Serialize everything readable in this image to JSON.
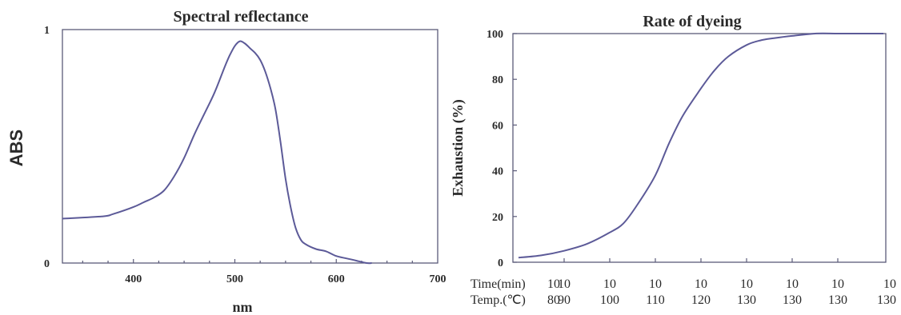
{
  "chart_data": [
    {
      "type": "line",
      "title": "Spectral reflectance",
      "xlabel": "nm",
      "ylabel": "ABS",
      "xlim": [
        330,
        700
      ],
      "ylim": [
        0,
        1
      ],
      "x_ticks": [
        "400",
        "500",
        "600",
        "700"
      ],
      "x_tick_values": [
        400,
        500,
        600,
        700
      ],
      "y_ticks": [
        "0",
        "1"
      ],
      "y_tick_values": [
        0,
        1
      ],
      "grid": false,
      "x": [
        330,
        370,
        380,
        400,
        410,
        420,
        430,
        440,
        450,
        460,
        470,
        480,
        490,
        495,
        500,
        505,
        510,
        515,
        520,
        525,
        530,
        535,
        540,
        545,
        550,
        555,
        560,
        565,
        570,
        580,
        590,
        600,
        610,
        620,
        630,
        635
      ],
      "values": [
        0.19,
        0.2,
        0.21,
        0.24,
        0.26,
        0.28,
        0.31,
        0.37,
        0.45,
        0.55,
        0.64,
        0.73,
        0.84,
        0.89,
        0.93,
        0.95,
        0.94,
        0.92,
        0.9,
        0.87,
        0.82,
        0.75,
        0.66,
        0.52,
        0.36,
        0.24,
        0.15,
        0.1,
        0.08,
        0.06,
        0.05,
        0.03,
        0.02,
        0.01,
        0.0,
        0.0
      ]
    },
    {
      "type": "line",
      "title": "Rate of dyeing",
      "xlabel": "",
      "ylabel": "Exhaustion (%)",
      "ylim": [
        0,
        100
      ],
      "y_ticks": [
        "0",
        "20",
        "40",
        "60",
        "80",
        "100"
      ],
      "y_tick_values": [
        0,
        20,
        40,
        60,
        80,
        100
      ],
      "grid": false,
      "row_labels": [
        "Time(min)",
        "Temp.(℃)"
      ],
      "time_ticks": [
        "10",
        "10",
        "10",
        "10",
        "10",
        "10",
        "10",
        "10",
        "10"
      ],
      "temp_ticks": [
        "80",
        "90",
        "100",
        "110",
        "120",
        "130",
        "130",
        "130",
        "130"
      ],
      "x": [
        0,
        0.5,
        1,
        1.5,
        2,
        2.3,
        2.6,
        3,
        3.3,
        3.6,
        4,
        4.3,
        4.6,
        5,
        5.3,
        5.6,
        6,
        6.5,
        7,
        7.5,
        8
      ],
      "values": [
        2,
        3,
        5,
        8,
        13,
        17,
        25,
        38,
        52,
        64,
        76,
        84,
        90,
        95,
        97,
        98,
        99,
        100,
        100,
        100,
        100
      ]
    }
  ]
}
